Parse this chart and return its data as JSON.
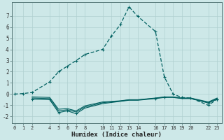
{
  "xlabel": "Humidex (Indice chaleur)",
  "background_color": "#cde8e8",
  "grid_color": "#b0d0d0",
  "line_color": "#006060",
  "ylim": [
    -2.6,
    8.2
  ],
  "yticks": [
    -2,
    -1,
    0,
    1,
    2,
    3,
    4,
    5,
    6,
    7
  ],
  "xlim": [
    -0.3,
    23.5
  ],
  "x_ticks": [
    0,
    1,
    2,
    4,
    5,
    6,
    7,
    8,
    10,
    11,
    12,
    13,
    14,
    16,
    17,
    18,
    19,
    20,
    22,
    23
  ],
  "x_tick_labels": [
    "0",
    "1",
    "2",
    "4",
    "5",
    "6",
    "7",
    "8",
    "10",
    "11",
    "12",
    "13",
    "14",
    "16",
    "17",
    "18",
    "19",
    "20",
    "22",
    "23"
  ],
  "s1x": [
    0,
    1,
    2,
    4,
    5,
    6,
    7,
    8,
    10,
    11,
    12,
    13,
    14,
    16,
    17,
    18,
    19,
    20,
    22,
    23
  ],
  "s1y": [
    0.0,
    0.05,
    0.15,
    1.1,
    2.0,
    2.5,
    3.0,
    3.55,
    4.0,
    5.2,
    6.2,
    7.8,
    6.95,
    5.6,
    1.55,
    0.0,
    -0.3,
    -0.35,
    -1.0,
    -0.45
  ],
  "s2x": [
    2,
    4,
    5,
    6,
    7,
    8,
    10,
    11,
    12,
    13,
    14,
    16,
    17,
    18,
    19,
    20,
    22,
    23
  ],
  "s2y": [
    -0.45,
    -0.5,
    -1.65,
    -1.5,
    -1.75,
    -1.25,
    -0.85,
    -0.75,
    -0.65,
    -0.55,
    -0.55,
    -0.4,
    -0.3,
    -0.3,
    -0.4,
    -0.4,
    -0.8,
    -0.45
  ],
  "s3x": [
    2,
    4,
    5,
    6,
    7,
    8,
    10,
    11,
    12,
    13,
    14,
    16,
    17,
    18,
    19,
    20,
    22,
    23
  ],
  "s3y": [
    -0.25,
    -0.3,
    -1.35,
    -1.3,
    -1.5,
    -1.05,
    -0.7,
    -0.65,
    -0.6,
    -0.5,
    -0.5,
    -0.35,
    -0.25,
    -0.25,
    -0.35,
    -0.35,
    -0.7,
    -0.35
  ],
  "s4x": [
    2,
    4,
    5,
    6,
    7,
    8,
    10,
    11,
    12,
    13,
    14,
    16,
    17,
    18,
    19,
    20,
    22,
    23
  ],
  "s4y": [
    -0.35,
    -0.4,
    -1.5,
    -1.4,
    -1.6,
    -1.15,
    -0.77,
    -0.7,
    -0.62,
    -0.52,
    -0.52,
    -0.37,
    -0.27,
    -0.27,
    -0.37,
    -0.37,
    -0.75,
    -0.4
  ],
  "s1_markers": [
    0,
    1,
    2,
    4,
    5,
    6,
    7,
    8,
    10,
    11,
    12,
    13,
    14,
    16,
    17,
    18,
    19,
    20,
    22,
    23
  ],
  "s2_markers": [
    2,
    4,
    5,
    6,
    7,
    16,
    17,
    22,
    23
  ]
}
